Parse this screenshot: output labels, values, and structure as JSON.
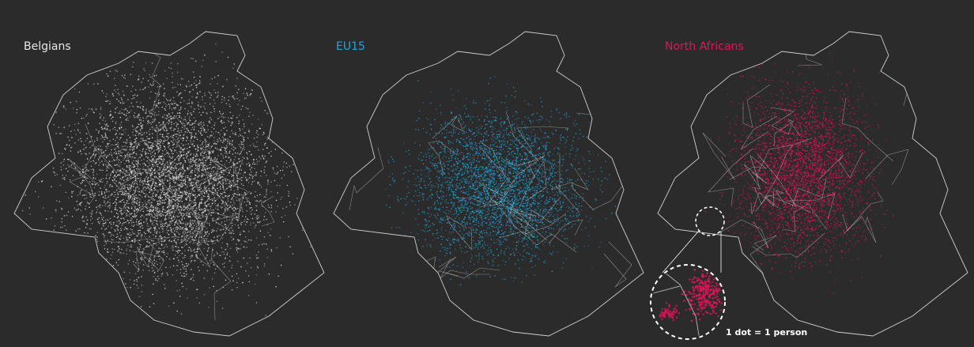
{
  "maps": [
    {
      "label": "Belgians",
      "color": "#e8e8e8"
    },
    {
      "label": "EU15",
      "color": "#1fa6e0"
    },
    {
      "label": "North Africans",
      "color": "#e0145a"
    }
  ],
  "legend": "1 dot = 1 person"
}
